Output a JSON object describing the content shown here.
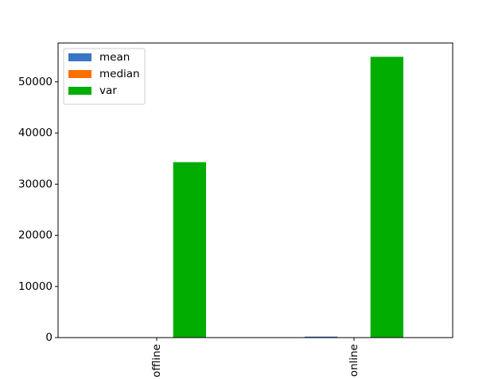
{
  "chart_data": {
    "type": "bar",
    "categories": [
      "offline",
      "online"
    ],
    "series": [
      {
        "name": "mean",
        "color": "#3a75c4",
        "values": [
          30,
          195
        ]
      },
      {
        "name": "median",
        "color": "#ff6e00",
        "values": [
          15,
          40
        ]
      },
      {
        "name": "var",
        "color": "#00ad00",
        "values": [
          34300,
          54900
        ]
      }
    ],
    "title": "",
    "xlabel": "",
    "ylabel": "",
    "ylim": [
      0,
      57600
    ],
    "yticks": [
      0,
      10000,
      20000,
      30000,
      40000,
      50000
    ],
    "grid": false,
    "legend_position": "top-left",
    "xtick_rotation": "vertical"
  }
}
